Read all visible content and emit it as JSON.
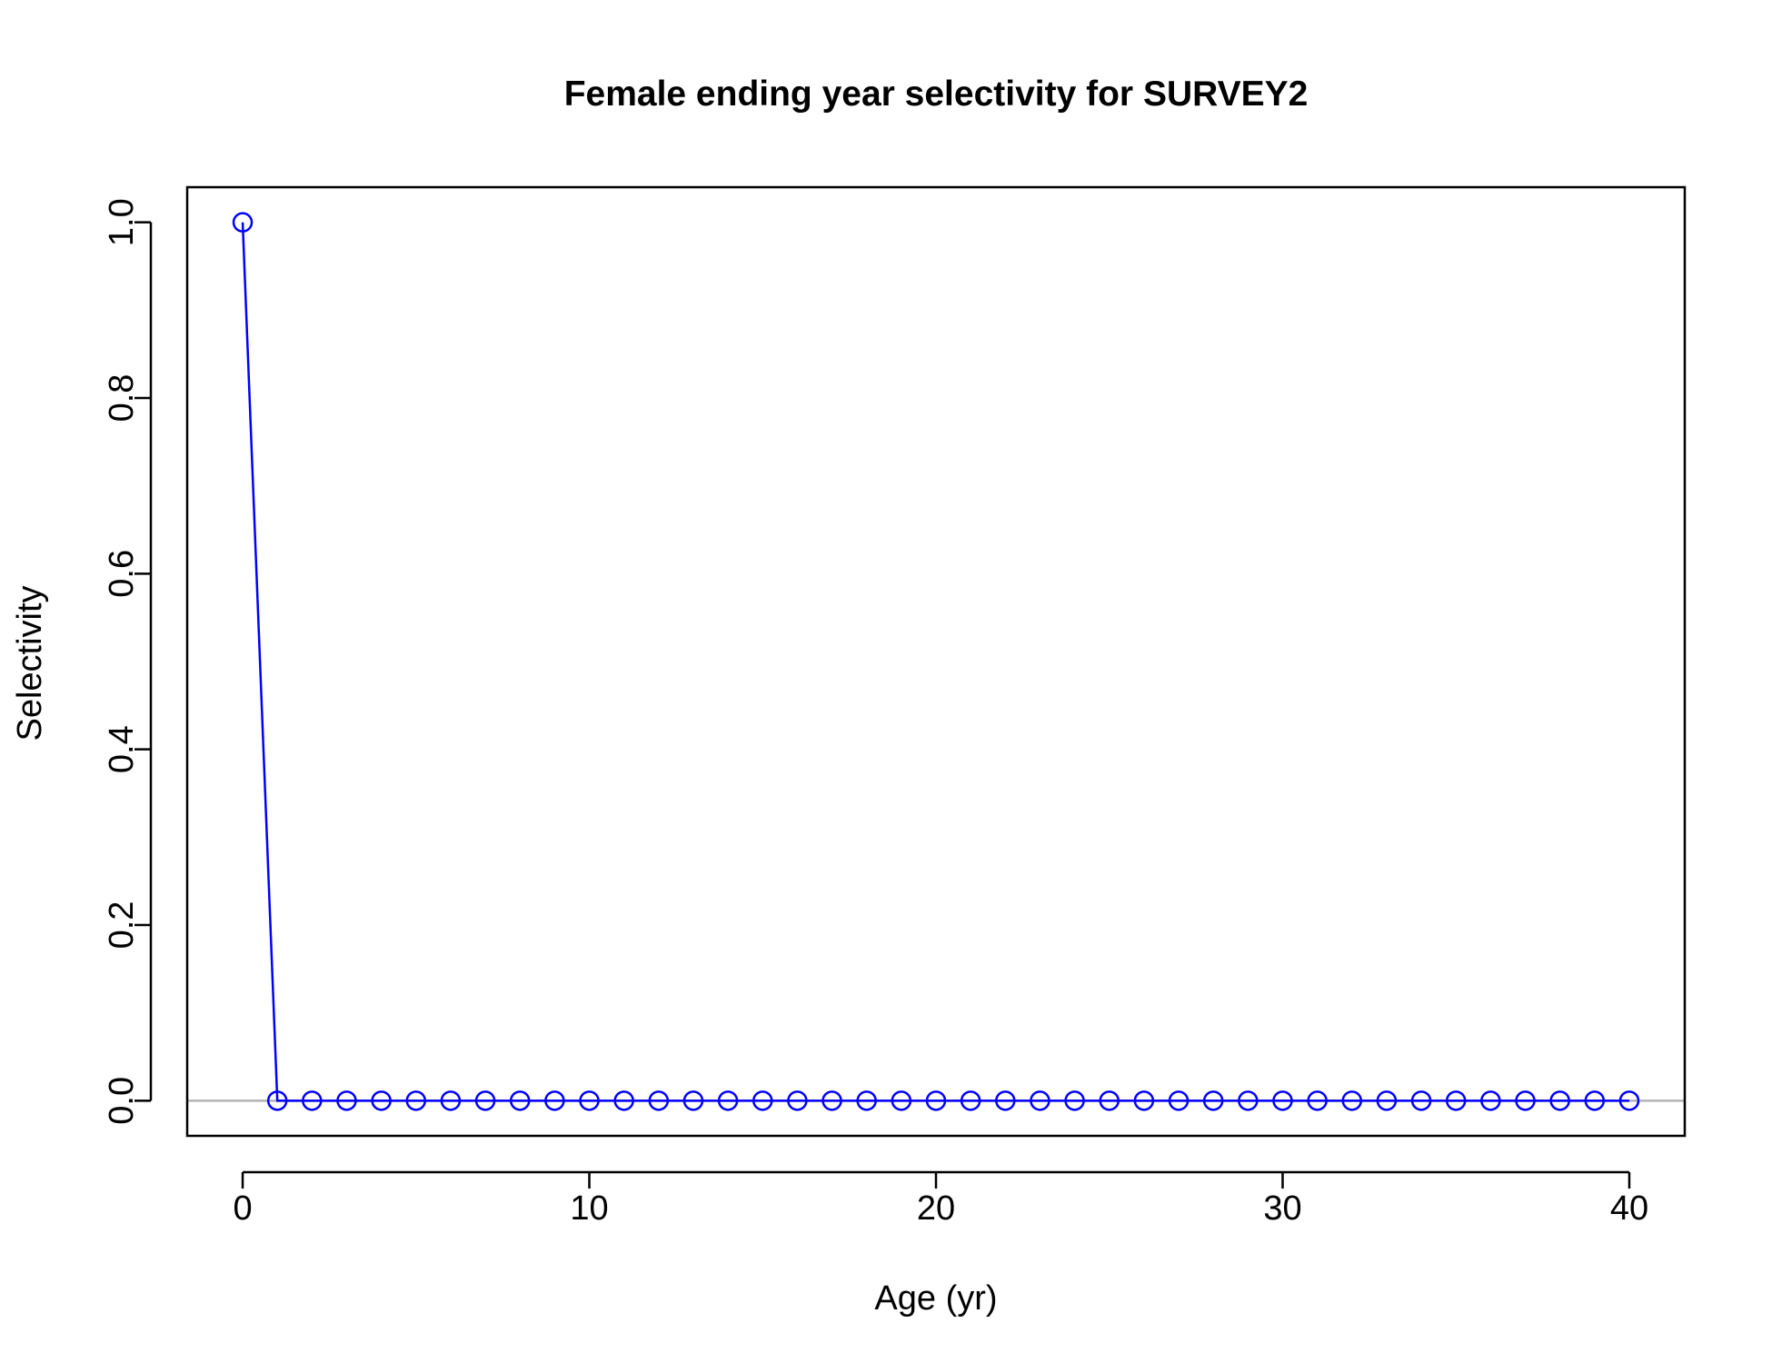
{
  "chart_data": {
    "type": "line",
    "title": "Female ending year selectivity for SURVEY2",
    "xlabel": "Age (yr)",
    "ylabel": "Selectivity",
    "xlim": [
      -1.6,
      41.6
    ],
    "ylim": [
      -0.04,
      1.04
    ],
    "x_ticks": [
      0,
      10,
      20,
      30,
      40
    ],
    "y_ticks": [
      0.0,
      0.2,
      0.4,
      0.6,
      0.8,
      1.0
    ],
    "x_tick_labels": [
      "0",
      "10",
      "20",
      "30",
      "40"
    ],
    "y_tick_labels": [
      "0.0",
      "0.2",
      "0.4",
      "0.6",
      "0.8",
      "1.0"
    ],
    "reference_line_y": 0,
    "grid": false,
    "series": [
      {
        "x": [
          0,
          1,
          2,
          3,
          4,
          5,
          6,
          7,
          8,
          9,
          10,
          11,
          12,
          13,
          14,
          15,
          16,
          17,
          18,
          19,
          20,
          21,
          22,
          23,
          24,
          25,
          26,
          27,
          28,
          29,
          30,
          31,
          32,
          33,
          34,
          35,
          36,
          37,
          38,
          39,
          40
        ],
        "values": [
          1,
          0,
          0,
          0,
          0,
          0,
          0,
          0,
          0,
          0,
          0,
          0,
          0,
          0,
          0,
          0,
          0,
          0,
          0,
          0,
          0,
          0,
          0,
          0,
          0,
          0,
          0,
          0,
          0,
          0,
          0,
          0,
          0,
          0,
          0,
          0,
          0,
          0,
          0,
          0,
          0
        ]
      }
    ],
    "colors": {
      "series": "#0000ff",
      "reference_line": "#b3b3b3",
      "axes": "#000000"
    }
  }
}
